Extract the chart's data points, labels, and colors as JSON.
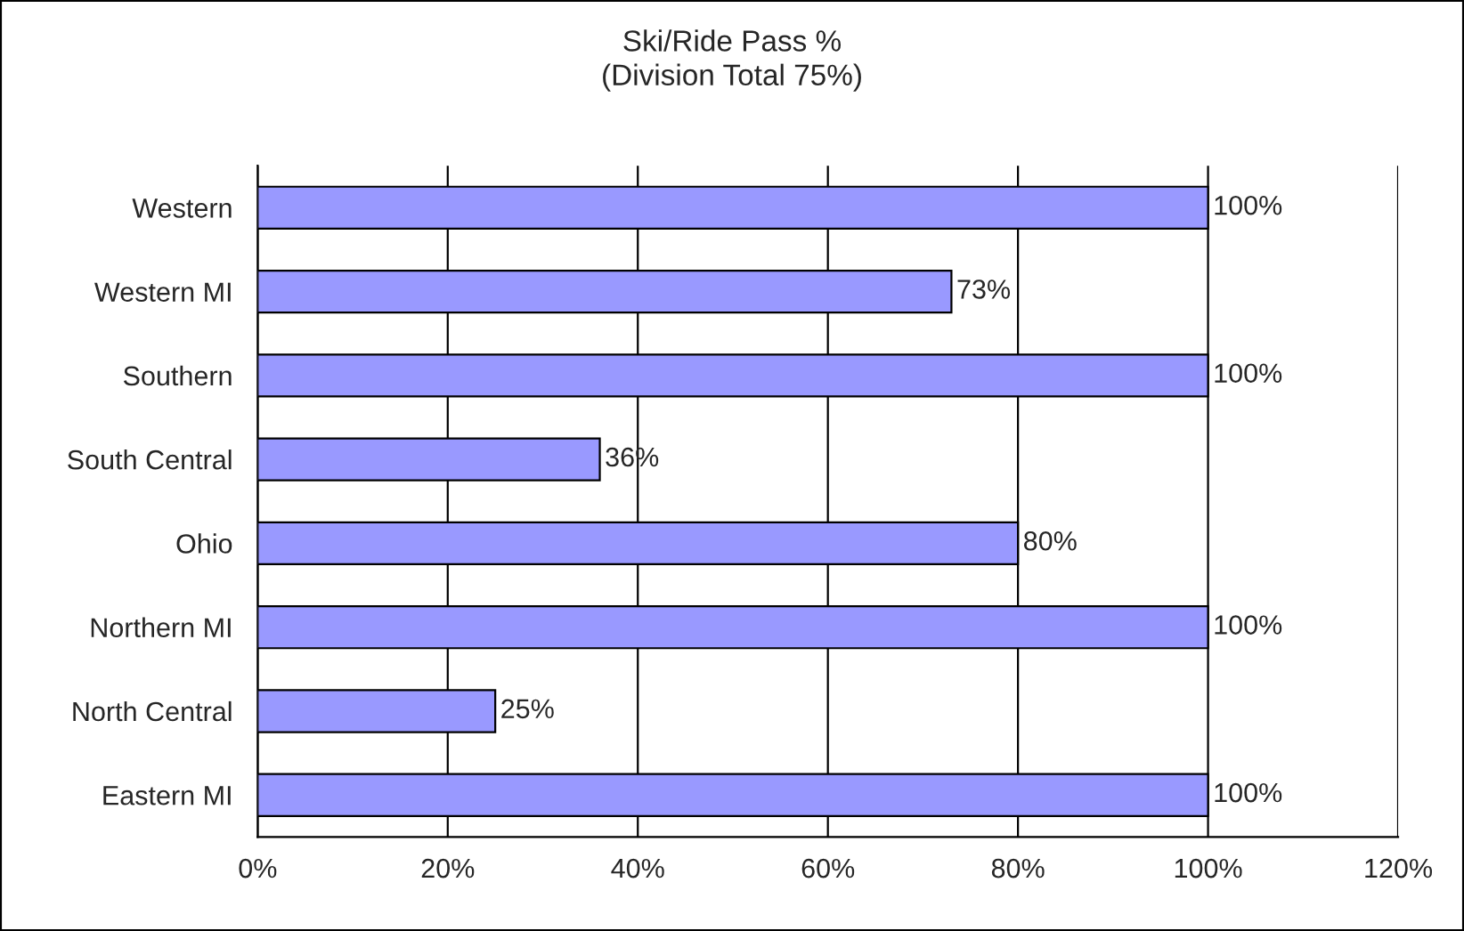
{
  "chart_data": {
    "type": "bar",
    "orientation": "horizontal",
    "title": "Ski/Ride Pass %\n(Division Total 75%)",
    "categories": [
      "Western",
      "Western MI",
      "Southern",
      "South Central",
      "Ohio",
      "Northern MI",
      "North Central",
      "Eastern MI"
    ],
    "values": [
      100,
      73,
      100,
      36,
      80,
      100,
      25,
      100
    ],
    "value_labels": [
      "100%",
      "73%",
      "100%",
      "36%",
      "80%",
      "100%",
      "25%",
      "100%"
    ],
    "color": "#9999ff",
    "xlim": [
      0,
      120
    ],
    "xticks": [
      {
        "value": 0,
        "label": "0%"
      },
      {
        "value": 20,
        "label": "20%"
      },
      {
        "value": 40,
        "label": "40%"
      },
      {
        "value": 60,
        "label": "60%"
      },
      {
        "value": 80,
        "label": "80%"
      },
      {
        "value": 100,
        "label": "100%"
      },
      {
        "value": 120,
        "label": "120%"
      }
    ],
    "grid": "x",
    "legend": false
  }
}
